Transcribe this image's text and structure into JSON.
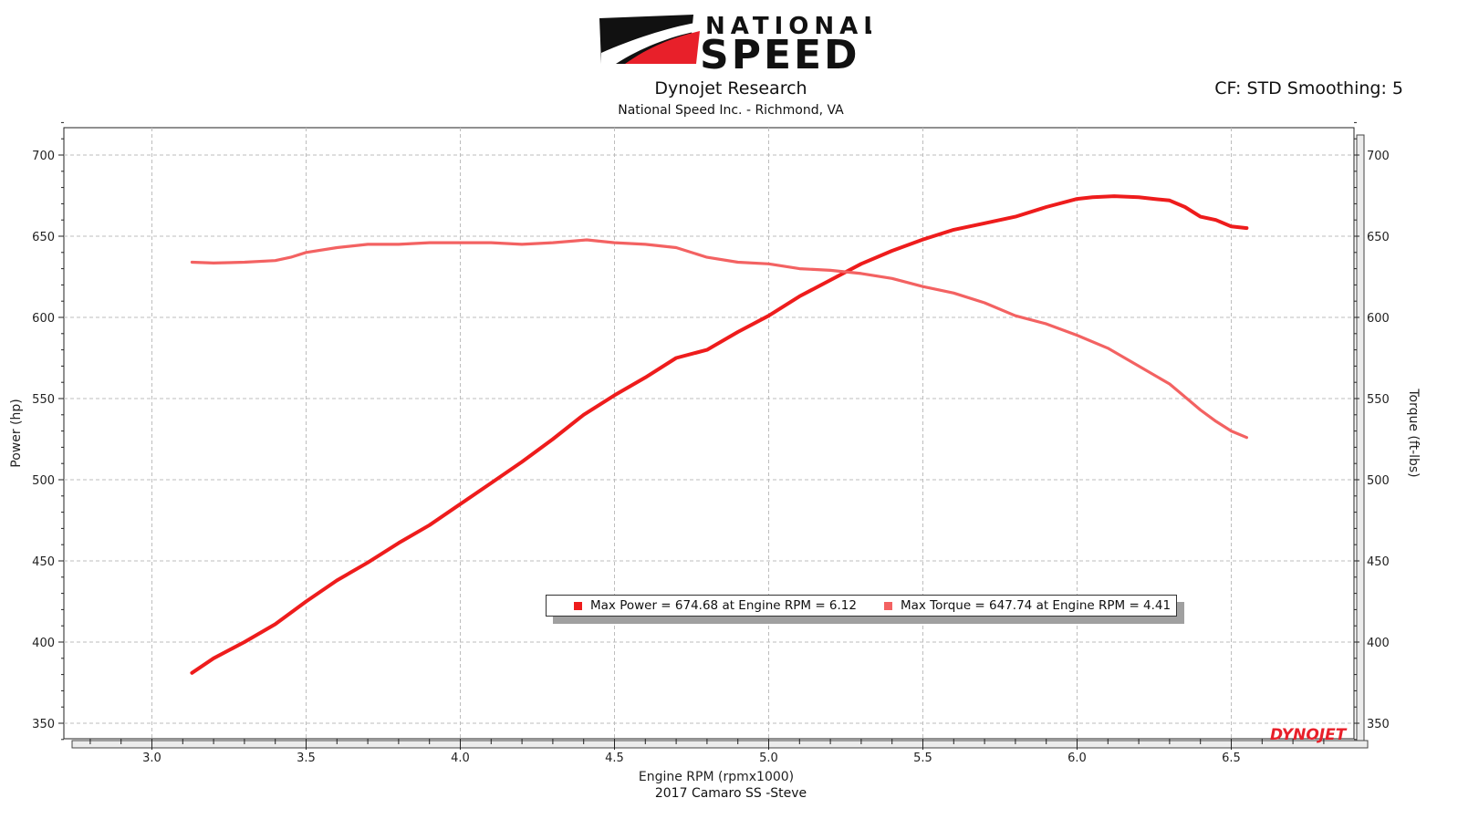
{
  "brand": {
    "line1": "NATIONAL",
    "line2": "SPEED",
    "accent_red": "#e8202a"
  },
  "header": {
    "title": "Dynojet Research",
    "subtitle": "National Speed Inc. - Richmond, VA"
  },
  "cf_label": "CF: STD Smoothing: 5",
  "footer": "2017 Camaro SS -Steve",
  "watermark": "DYNOJET",
  "legend": {
    "power": "Max Power = 674.68 at Engine RPM = 6.12",
    "torque": "Max Torque = 647.74 at Engine RPM = 4.41"
  },
  "chart_data": {
    "type": "line",
    "xlabel": "Engine RPM (rpmx1000)",
    "ylabel_left": "Power (hp)",
    "ylabel_right": "Torque (ft-lbs)",
    "xlim": [
      2.7,
      6.9
    ],
    "ylim_left": [
      340,
      720
    ],
    "ylim_right": [
      340,
      720
    ],
    "xticks": [
      3.0,
      3.5,
      4.0,
      4.5,
      5.0,
      5.5,
      6.0,
      6.5
    ],
    "yticks": [
      350,
      400,
      450,
      500,
      550,
      600,
      650,
      700
    ],
    "grid": true,
    "legend_position": "center",
    "series": [
      {
        "name": "Power",
        "color": "#ee1c1c",
        "axis": "left",
        "x": [
          3.13,
          3.2,
          3.3,
          3.4,
          3.5,
          3.6,
          3.7,
          3.8,
          3.9,
          4.0,
          4.1,
          4.2,
          4.3,
          4.4,
          4.5,
          4.6,
          4.7,
          4.8,
          4.9,
          5.0,
          5.1,
          5.2,
          5.3,
          5.4,
          5.5,
          5.6,
          5.7,
          5.8,
          5.9,
          6.0,
          6.05,
          6.12,
          6.2,
          6.25,
          6.3,
          6.35,
          6.4,
          6.45,
          6.5,
          6.55
        ],
        "y": [
          381,
          390,
          400,
          411,
          425,
          438,
          449,
          461,
          472,
          485,
          498,
          511,
          525,
          540,
          552,
          563,
          575,
          580,
          591,
          601,
          613,
          623,
          633,
          641,
          648,
          654,
          658,
          662,
          668,
          673,
          674,
          674.68,
          674,
          673,
          672,
          668,
          662,
          660,
          656,
          655
        ]
      },
      {
        "name": "Torque",
        "color": "#f36262",
        "axis": "right",
        "x": [
          3.13,
          3.2,
          3.3,
          3.4,
          3.45,
          3.5,
          3.6,
          3.7,
          3.8,
          3.9,
          4.0,
          4.1,
          4.2,
          4.3,
          4.41,
          4.5,
          4.6,
          4.7,
          4.8,
          4.9,
          5.0,
          5.1,
          5.2,
          5.3,
          5.4,
          5.5,
          5.6,
          5.7,
          5.8,
          5.9,
          6.0,
          6.1,
          6.2,
          6.3,
          6.35,
          6.4,
          6.45,
          6.5,
          6.55
        ],
        "y": [
          634,
          633.5,
          634,
          635,
          637,
          640,
          643,
          645,
          645,
          646,
          646,
          646,
          645,
          646,
          647.74,
          646,
          645,
          643,
          637,
          634,
          633,
          630,
          629,
          627,
          624,
          619,
          615,
          609,
          601,
          596,
          589,
          581,
          570,
          559,
          551,
          543,
          536,
          530,
          526
        ]
      }
    ]
  }
}
